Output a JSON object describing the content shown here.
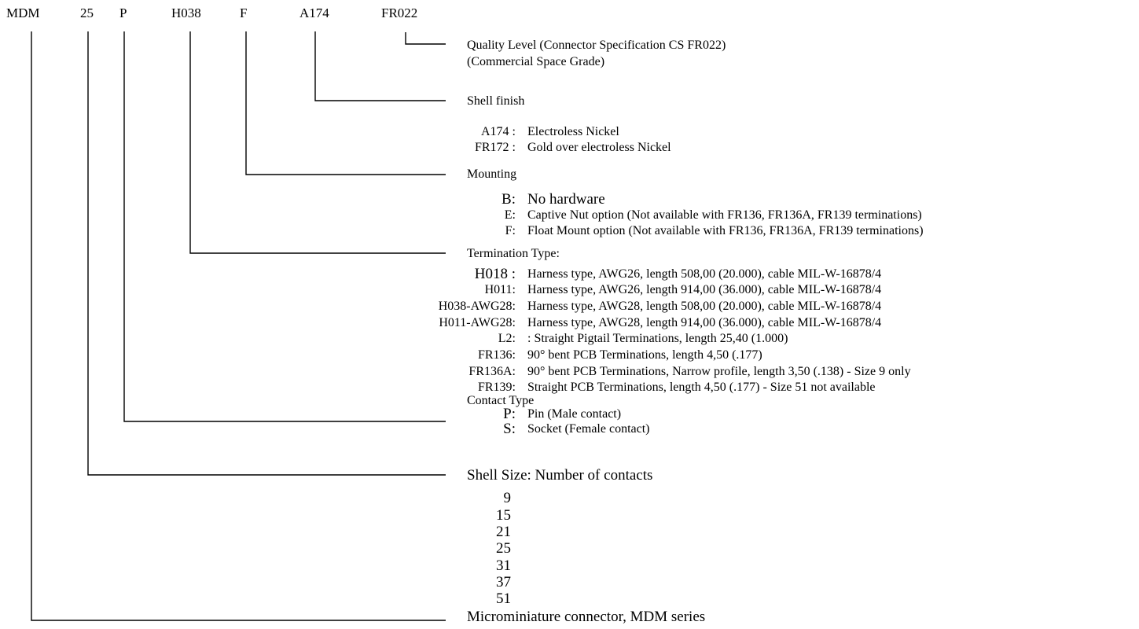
{
  "code": {
    "p1": "MDM",
    "p2": "25",
    "p3": "P",
    "p4": "H038",
    "p5": "F",
    "p6": "A174",
    "p7": "FR022"
  },
  "quality": {
    "line1": "Quality Level (Connector Specification CS FR022)",
    "line2": "(Commercial Space Grade)"
  },
  "finish": {
    "title": "Shell finish",
    "options": [
      {
        "key": "A174 :",
        "desc": "Electroless Nickel"
      },
      {
        "key": "FR172 :",
        "desc": "Gold over electroless Nickel"
      }
    ]
  },
  "mounting": {
    "title": "Mounting",
    "options": [
      {
        "key": "B:",
        "desc": "No hardware"
      },
      {
        "key": "E:",
        "desc": "Captive Nut option (Not available with FR136, FR136A, FR139 terminations)"
      },
      {
        "key": "F:",
        "desc": "Float Mount option (Not available with FR136, FR136A, FR139 terminations)"
      }
    ]
  },
  "termination": {
    "title": "Termination Type:",
    "options": [
      {
        "key": "H018 :",
        "desc": "Harness type, AWG26, length 508,00  (20.000), cable MIL-W-16878/4"
      },
      {
        "key": "H011:",
        "desc": "Harness type, AWG26, length 914,00 (36.000), cable MIL-W-16878/4"
      },
      {
        "key": "H038-AWG28:",
        "desc": "Harness type, AWG28, length 508,00 (20.000), cable MIL-W-16878/4"
      },
      {
        "key": "H011-AWG28:",
        "desc": "Harness type, AWG28, length 914,00 (36.000), cable MIL-W-16878/4"
      },
      {
        "key": "L2:",
        "desc": ": Straight Pigtail Terminations, length 25,40 (1.000)"
      },
      {
        "key": "FR136:",
        "desc": "90° bent PCB Terminations, length 4,50  (.177)"
      },
      {
        "key": "FR136A:",
        "desc": "90° bent PCB Terminations, Narrow profile, length 3,50  (.138) - Size 9 only"
      },
      {
        "key": "FR139:",
        "desc": "Straight PCB Terminations, length 4,50  (.177) - Size 51 not available"
      }
    ]
  },
  "contact": {
    "title": "Contact Type",
    "options": [
      {
        "key": "P:",
        "desc": "Pin (Male contact)"
      },
      {
        "key": "S:",
        "desc": "Socket (Female contact)"
      }
    ]
  },
  "shell": {
    "title": "Shell Size: Number of contacts",
    "sizes": [
      "9",
      "15",
      "21",
      "25",
      "31",
      "37",
      "51"
    ]
  },
  "series": {
    "title": "Microminiature connector, MDM series"
  }
}
